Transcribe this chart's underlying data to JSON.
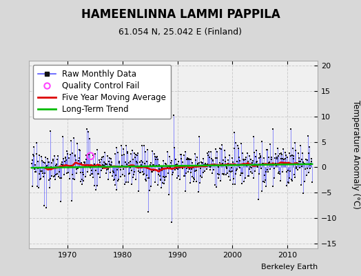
{
  "title": "HAMEENLINNA LAMMI PAPPILA",
  "subtitle": "61.054 N, 25.042 E (Finland)",
  "ylabel": "Temperature Anomaly (°C)",
  "attribution": "Berkeley Earth",
  "ylim": [
    -16,
    21
  ],
  "yticks": [
    -15,
    -10,
    -5,
    0,
    5,
    10,
    15,
    20
  ],
  "year_start": 1963.5,
  "year_end": 2014.5,
  "bg_color": "#d8d8d8",
  "plot_bg_color": "#f0f0f0",
  "raw_line_color": "#5555ff",
  "raw_marker_color": "#111111",
  "moving_avg_color": "#dd0000",
  "trend_color": "#00bb00",
  "qc_fail_color": "#ff44ff",
  "legend_fontsize": 8.5,
  "title_fontsize": 12,
  "subtitle_fontsize": 9,
  "xticks": [
    1970,
    1980,
    1990,
    2000,
    2010
  ],
  "seed": 42
}
